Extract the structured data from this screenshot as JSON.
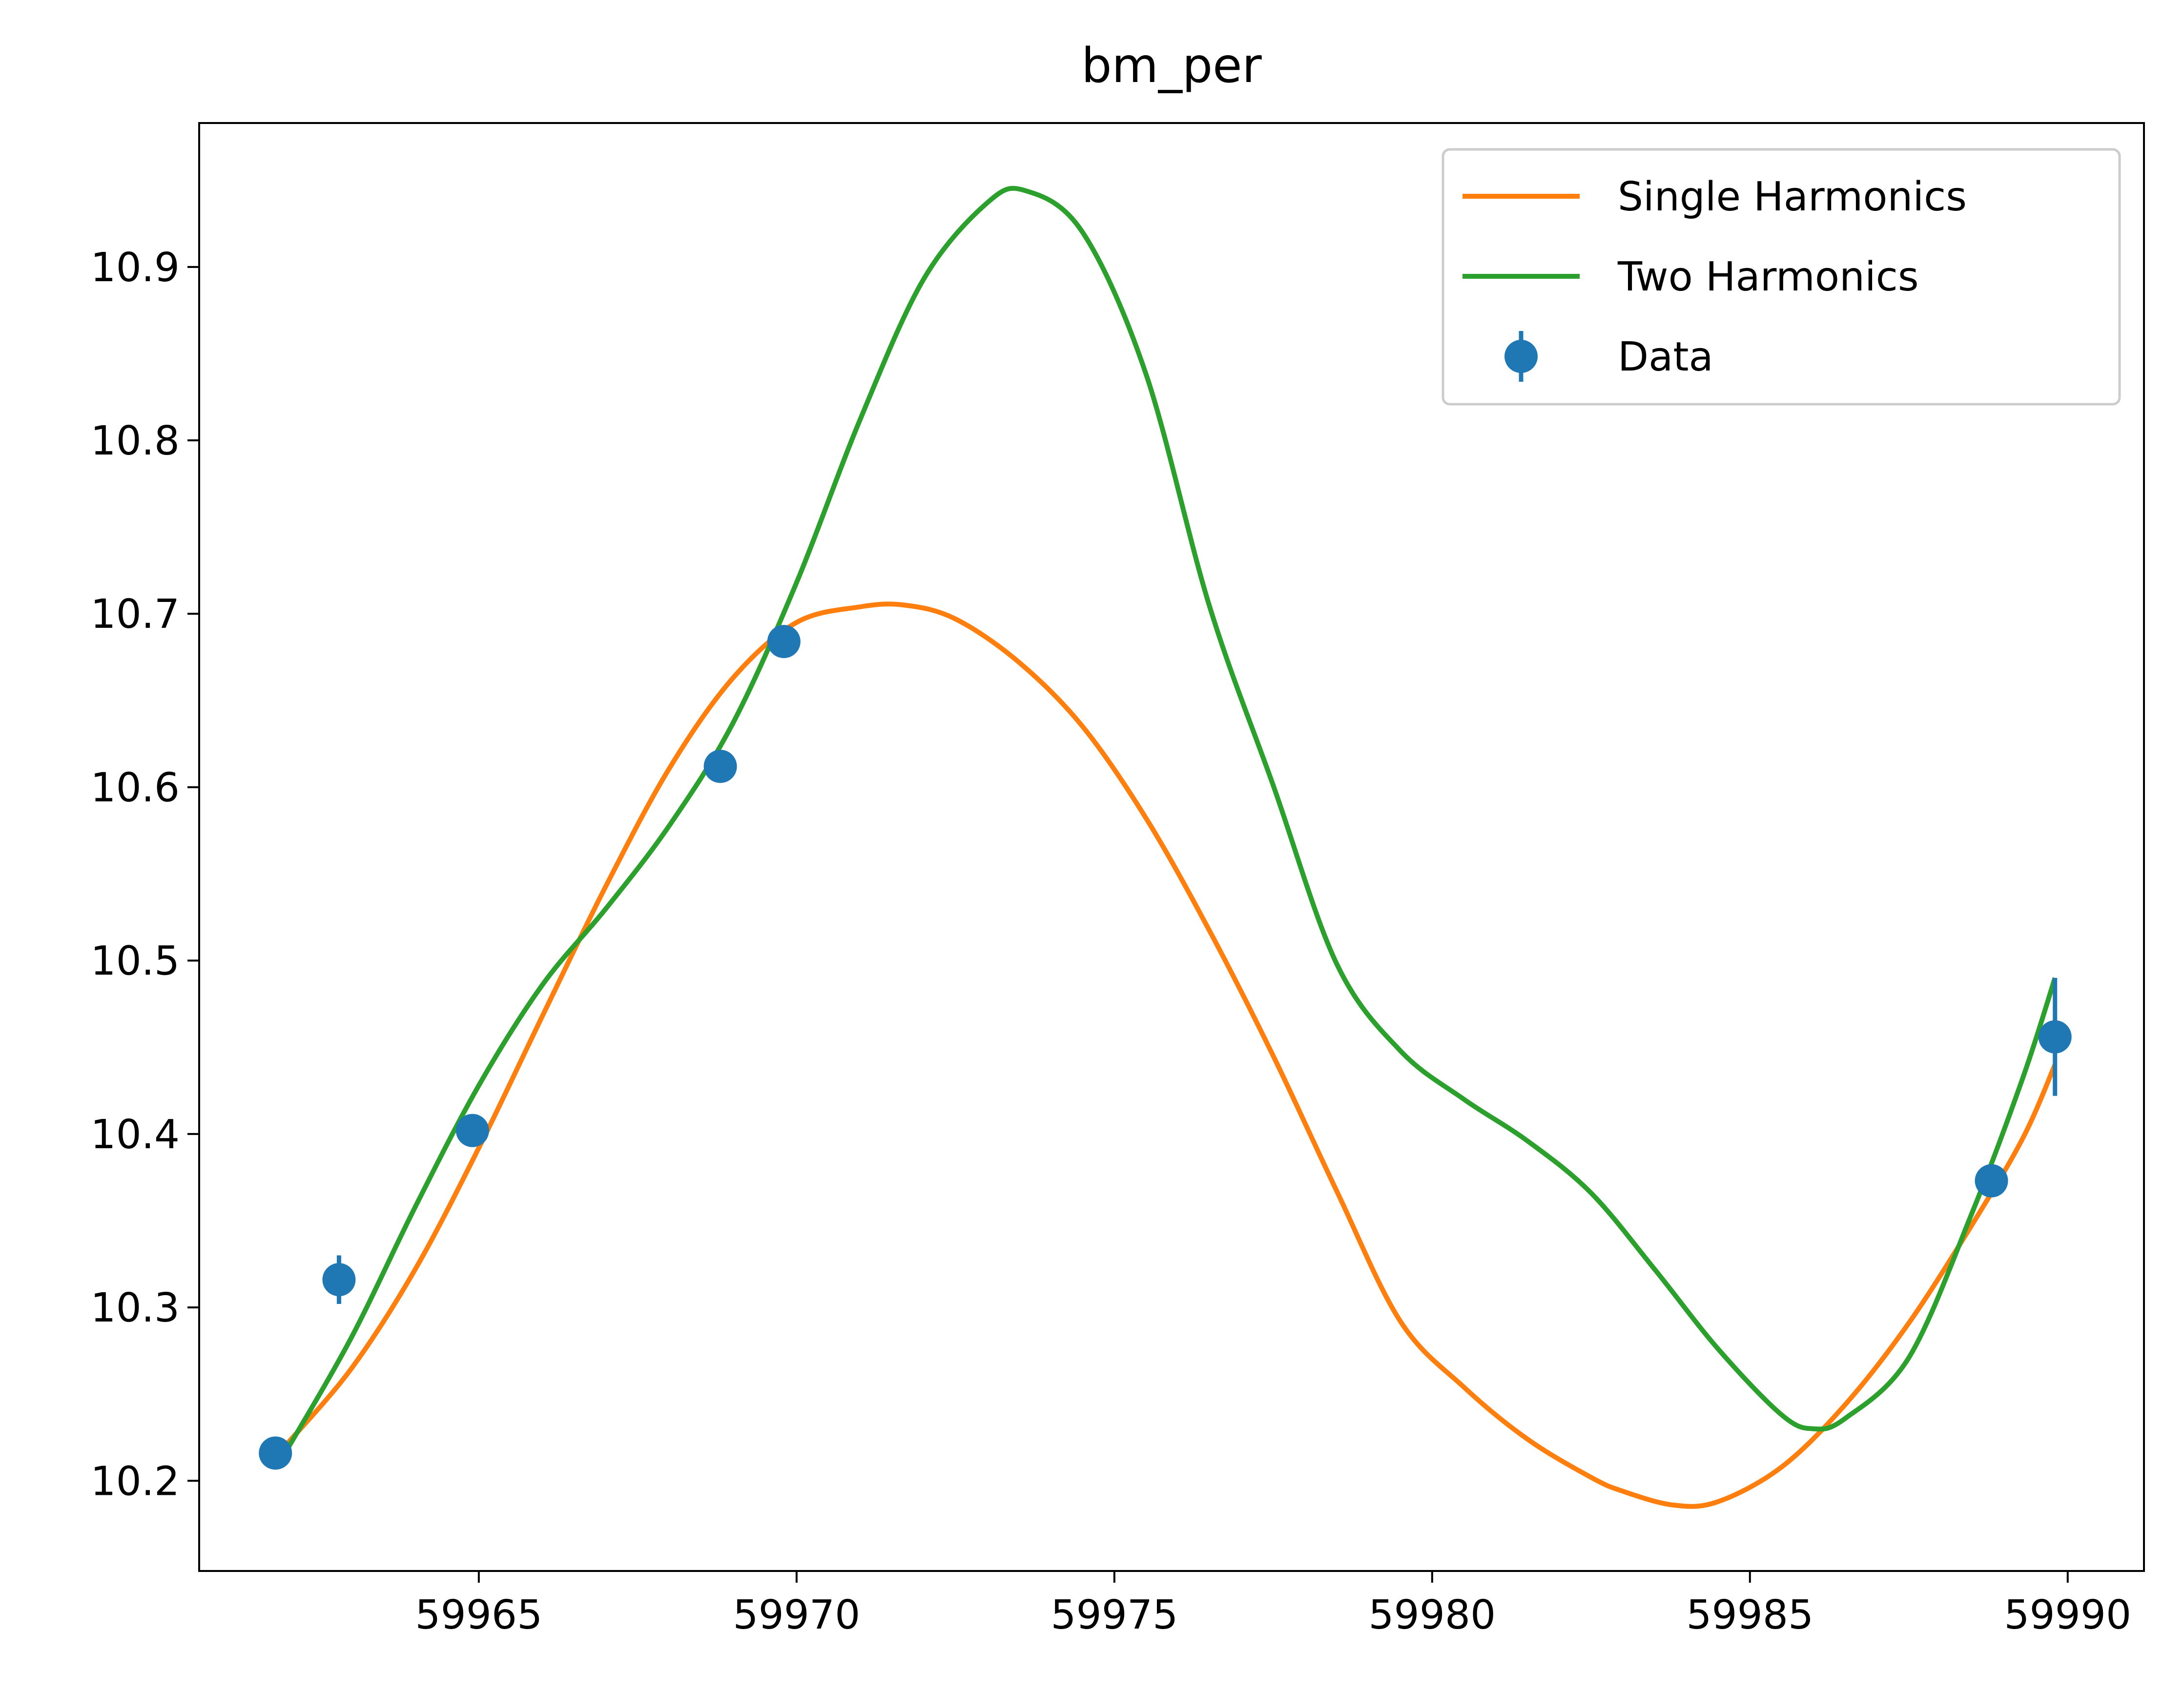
{
  "chart_data": {
    "type": "line",
    "title": "bm_per",
    "xlabel": "",
    "ylabel": "",
    "xlim": [
      59960.6,
      59991.2
    ],
    "ylim": [
      10.148,
      10.983
    ],
    "xticks": [
      59965,
      59970,
      59975,
      59980,
      59985,
      59990
    ],
    "yticks": [
      10.2,
      10.3,
      10.4,
      10.5,
      10.6,
      10.7,
      10.8,
      10.9
    ],
    "xtick_labels": [
      "59965",
      "59970",
      "59975",
      "59980",
      "59985",
      "59990"
    ],
    "ytick_labels": [
      "10.2",
      "10.3",
      "10.4",
      "10.5",
      "10.6",
      "10.7",
      "10.8",
      "10.9"
    ],
    "grid": false,
    "legend_position": "top-right",
    "series": [
      {
        "name": "Single Harmonics",
        "kind": "line",
        "color": "#ff7f0e",
        "x": [
          59962.0,
          59963.0,
          59964.0,
          59965.0,
          59966.0,
          59967.0,
          59968.0,
          59969.0,
          59970.0,
          59971.0,
          59971.7,
          59972.5,
          59973.5,
          59974.5,
          59975.5,
          59976.5,
          59977.5,
          59978.5,
          59979.5,
          59980.5,
          59981.5,
          59982.5,
          59983.0,
          59983.8,
          59984.5,
          59985.5,
          59986.5,
          59987.5,
          59988.5,
          59989.3,
          59989.8
        ],
        "y": [
          10.222,
          10.265,
          10.322,
          10.392,
          10.468,
          10.543,
          10.611,
          10.663,
          10.695,
          10.704,
          10.705,
          10.697,
          10.672,
          10.635,
          10.582,
          10.517,
          10.445,
          10.367,
          10.292,
          10.254,
          10.224,
          10.202,
          10.194,
          10.186,
          10.188,
          10.208,
          10.244,
          10.291,
          10.348,
          10.398,
          10.44
        ]
      },
      {
        "name": "Two Harmonics",
        "kind": "line",
        "color": "#2ca02c",
        "x": [
          59962.0,
          59963.0,
          59964.0,
          59965.0,
          59966.0,
          59967.0,
          59968.0,
          59969.0,
          59970.0,
          59971.0,
          59972.0,
          59973.0,
          59973.6,
          59974.5,
          59975.5,
          59976.5,
          59977.5,
          59978.5,
          59979.5,
          59980.5,
          59981.5,
          59982.5,
          59983.5,
          59984.5,
          59985.5,
          59986.0,
          59986.5,
          59987.5,
          59988.5,
          59989.3,
          59989.8
        ],
        "y": [
          10.219,
          10.283,
          10.358,
          10.428,
          10.486,
          10.53,
          10.578,
          10.637,
          10.718,
          10.812,
          10.893,
          10.937,
          10.944,
          10.92,
          10.838,
          10.704,
          10.601,
          10.498,
          10.448,
          10.42,
          10.396,
          10.366,
          10.322,
          10.276,
          10.238,
          10.23,
          10.236,
          10.271,
          10.355,
          10.433,
          10.49
        ]
      },
      {
        "name": "Data",
        "kind": "errorbar",
        "color": "#1f77b4",
        "x": [
          59961.8,
          59962.8,
          59964.9,
          59968.8,
          59969.8,
          59988.8,
          59989.8
        ],
        "y": [
          10.216,
          10.316,
          10.402,
          10.612,
          10.684,
          10.373,
          10.456
        ],
        "yerr": [
          0.005,
          0.014,
          0.005,
          0.005,
          0.005,
          0.005,
          0.034
        ]
      }
    ]
  }
}
